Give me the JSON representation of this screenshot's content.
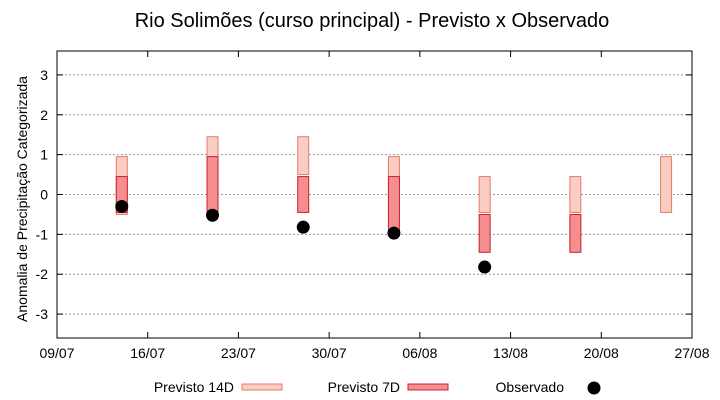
{
  "chart_data": {
    "type": "range-bar",
    "title": "Rio Solimões (curso principal) - Previsto x Observado",
    "xlabel": "",
    "ylabel": "Anomalia de Precipitação Categorizada",
    "xlim": [
      "2025-07-09",
      "2025-08-27"
    ],
    "ylim": [
      -3.6,
      3.6
    ],
    "yticks": [
      -3,
      -2,
      -1,
      0,
      1,
      2,
      3
    ],
    "yticklabels": [
      "-3",
      "-2",
      "-1",
      "0",
      "1",
      "2",
      "3"
    ],
    "xticks": [
      "2025-07-09",
      "2025-07-16",
      "2025-07-23",
      "2025-07-30",
      "2025-08-06",
      "2025-08-13",
      "2025-08-20",
      "2025-08-27"
    ],
    "xticklabels": [
      "09/07",
      "16/07",
      "23/07",
      "30/07",
      "06/08",
      "13/08",
      "20/08",
      "27/08"
    ],
    "grid": "y-dashed",
    "legend_position": "bottom",
    "series": [
      {
        "name": "Previsto 14D",
        "kind": "range",
        "color_fill": "#f9cdc4",
        "color_edge": "#e87a6a",
        "points": [
          {
            "x": "2025-07-14",
            "low": -0.5,
            "high": 0.95
          },
          {
            "x": "2025-07-21",
            "low": -0.5,
            "high": 1.45
          },
          {
            "x": "2025-07-28",
            "low": 0.5,
            "high": 1.45
          },
          {
            "x": "2025-08-04",
            "low": -0.45,
            "high": 0.95
          },
          {
            "x": "2025-08-11",
            "low": -0.45,
            "high": 0.45
          },
          {
            "x": "2025-08-18",
            "low": -0.45,
            "high": 0.45
          },
          {
            "x": "2025-08-25",
            "low": -0.45,
            "high": 0.95
          }
        ]
      },
      {
        "name": "Previsto 7D",
        "kind": "range",
        "color_fill": "#f58e8e",
        "color_edge": "#c8202a",
        "points": [
          {
            "x": "2025-07-14",
            "low": -0.45,
            "high": 0.45
          },
          {
            "x": "2025-07-21",
            "low": -0.45,
            "high": 0.95
          },
          {
            "x": "2025-07-28",
            "low": -0.45,
            "high": 0.45
          },
          {
            "x": "2025-08-04",
            "low": -0.95,
            "high": 0.45
          },
          {
            "x": "2025-08-11",
            "low": -1.45,
            "high": -0.5
          },
          {
            "x": "2025-08-18",
            "low": -1.45,
            "high": -0.5
          }
        ]
      },
      {
        "name": "Observado",
        "kind": "point",
        "color": "#000000",
        "points": [
          {
            "x": "2025-07-14",
            "y": -0.3
          },
          {
            "x": "2025-07-21",
            "y": -0.52
          },
          {
            "x": "2025-07-28",
            "y": -0.82
          },
          {
            "x": "2025-08-04",
            "y": -0.97
          },
          {
            "x": "2025-08-11",
            "y": -1.82
          }
        ]
      }
    ]
  }
}
